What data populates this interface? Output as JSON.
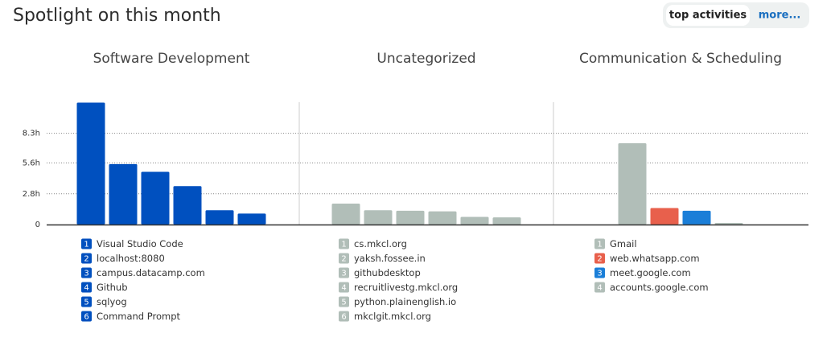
{
  "header": {
    "title": "Spotlight on this month",
    "tabs": [
      "top activities",
      "more..."
    ]
  },
  "chart_data": [
    {
      "type": "bar",
      "title": "Software Development",
      "categories": [
        "Visual Studio Code",
        "localhost:8080",
        "campus.datacamp.com",
        "Github",
        "sqlyog",
        "Command Prompt"
      ],
      "ranks": [
        1,
        2,
        3,
        4,
        5,
        6
      ],
      "values": [
        11.1,
        5.5,
        4.8,
        3.5,
        1.3,
        1.0
      ],
      "colors": [
        "#0050bf",
        "#0050bf",
        "#0050bf",
        "#0050bf",
        "#0050bf",
        "#0050bf"
      ],
      "ylim": [
        0,
        11.5
      ],
      "yticks": [
        0,
        {
          "value": 2.8,
          "label": "2.8h"
        },
        {
          "value": 5.6,
          "label": "5.6h"
        },
        {
          "value": 8.3,
          "label": "8.3h"
        }
      ],
      "grid": true
    },
    {
      "type": "bar",
      "title": "Uncategorized",
      "categories": [
        "cs.mkcl.org",
        "yaksh.fossee.in",
        "githubdesktop",
        "recruitlivestg.mkcl.org",
        "python.plainenglish.io",
        "mkclgit.mkcl.org"
      ],
      "ranks": [
        1,
        2,
        3,
        4,
        5,
        6
      ],
      "values": [
        1.9,
        1.3,
        1.25,
        1.2,
        0.7,
        0.65
      ],
      "colors": [
        "#b1beb8",
        "#b1beb8",
        "#b1beb8",
        "#b1beb8",
        "#b1beb8",
        "#b1beb8"
      ],
      "ylim": [
        0,
        11.5
      ]
    },
    {
      "type": "bar",
      "title": "Communication & Scheduling",
      "categories": [
        "Gmail",
        "web.whatsapp.com",
        "meet.google.com",
        "accounts.google.com"
      ],
      "ranks": [
        1,
        2,
        3,
        4
      ],
      "values": [
        7.4,
        1.5,
        1.25,
        0.15
      ],
      "colors": [
        "#b1beb8",
        "#e8604c",
        "#1a7ed8",
        "#b1beb8"
      ],
      "ylim": [
        0,
        11.5
      ]
    }
  ]
}
